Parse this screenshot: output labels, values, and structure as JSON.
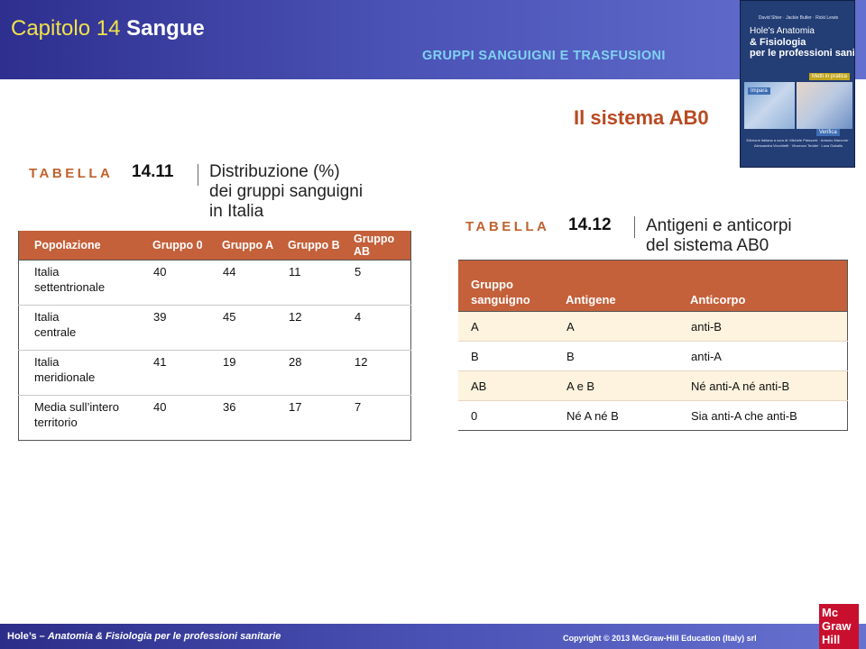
{
  "header": {
    "chapter_number": "Capitolo 14",
    "chapter_title": "Sangue",
    "section": "GRUPPI SANGUIGNI E TRASFUSIONI"
  },
  "subtitle": "Il sistema AB0",
  "book_cover": {
    "authors": "David Shier · Jackie Butler · Ricki Lewis",
    "title_line1": "Hole's Anatomia",
    "title_line2": "& Fisiologia",
    "title_line3": "per le professioni sanitarie",
    "tag_mettiinpratica": "Metti in pratica",
    "tag_impara": "Impara",
    "tag_verifica": "Verifica",
    "editors": "Edizione italiana a cura di: Michele Paluszek · Antonio Marcone · Alessandra Vecchietti · Vincenzo Teddei · Luca Gaballo"
  },
  "table1": {
    "label": "TABELLA",
    "number": "14.11",
    "caption": [
      "Distribuzione (%)",
      "dei gruppi sanguigni",
      "in Italia"
    ],
    "headers": [
      "Popolazione",
      "Gruppo 0",
      "Gruppo A",
      "Gruppo B",
      "Gruppo AB"
    ],
    "rows": [
      {
        "population": [
          "Italia",
          "settentrionale"
        ],
        "g0": "40",
        "gA": "44",
        "gB": "11",
        "gAB": "5"
      },
      {
        "population": [
          "Italia",
          "centrale"
        ],
        "g0": "39",
        "gA": "45",
        "gB": "12",
        "gAB": "4"
      },
      {
        "population": [
          "Italia",
          "meridionale"
        ],
        "g0": "41",
        "gA": "19",
        "gB": "28",
        "gAB": "12"
      },
      {
        "population": [
          "Media sull’intero",
          "territorio"
        ],
        "g0": "40",
        "gA": "36",
        "gB": "17",
        "gAB": "7"
      }
    ]
  },
  "table2": {
    "label": "TABELLA",
    "number": "14.12",
    "caption": [
      "Antigeni e anticorpi",
      "del sistema AB0"
    ],
    "headers": [
      "Gruppo",
      "sanguigno",
      "Antigene",
      "Anticorpo"
    ],
    "rows": [
      {
        "group": "A",
        "antigen": "A",
        "antibody": "anti-B"
      },
      {
        "group": "B",
        "antigen": "B",
        "antibody": "anti-A"
      },
      {
        "group": "AB",
        "antigen": "A e B",
        "antibody": "Né anti-A né anti-B"
      },
      {
        "group": "0",
        "antigen": "Né A né B",
        "antibody": "Sia anti-A che anti-B"
      }
    ]
  },
  "footer": {
    "left_prefix": "Hole’s – ",
    "left_italic": "Anatomia & Fisiologia per le professioni sanitarie",
    "right": "Copyright © 2013 McGraw-Hill Education (Italy) srl"
  },
  "logo": [
    "Mc",
    "Graw",
    "Hill"
  ],
  "colors": {
    "header_blue": "#3b41a3",
    "chapter_number": "#f2e14a",
    "section_cyan": "#7fd3f0",
    "subtitle_red": "#b84a22",
    "table_header": "#c4603a",
    "table_label": "#c0622e",
    "row_tint": "#fdf3de",
    "logo_red": "#c8102e"
  }
}
